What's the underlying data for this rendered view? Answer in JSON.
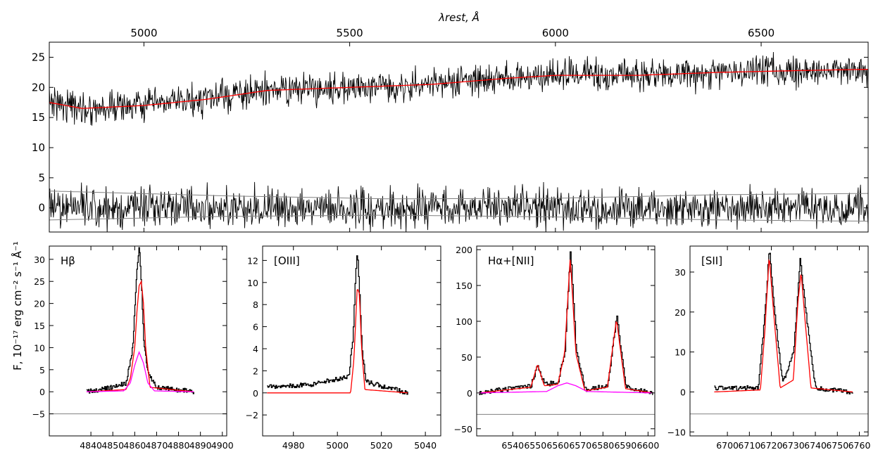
{
  "figure": {
    "top_axis_label": "λrest, Å",
    "y_axis_label": "F, 10⁻¹⁷ erg cm⁻² s⁻¹ Å⁻¹"
  },
  "chart_data": [
    {
      "id": "full",
      "type": "line",
      "xlabel": "λrest, Å",
      "ylabel": "F, 10⁻¹⁷ erg cm⁻² s⁻¹ Å⁻¹",
      "xlim": [
        4770,
        6760
      ],
      "ylim": [
        -4,
        27.5
      ],
      "x_ticks": [
        5000,
        5500,
        6000,
        6500
      ],
      "y_ticks": [
        0,
        5,
        10,
        15,
        20,
        25
      ],
      "series": [
        {
          "role": "observed spectrum",
          "color": "#000000",
          "x": [
            4770,
            4850,
            5000,
            5150,
            5300,
            5500,
            5700,
            5880,
            6000,
            6200,
            6400,
            6600,
            6760
          ],
          "values": [
            18,
            16.5,
            17,
            18,
            19.5,
            20,
            20.5,
            21.5,
            22,
            22,
            22.5,
            22.8,
            23
          ]
        },
        {
          "role": "model fit",
          "color": "#ff0000",
          "x": [
            4770,
            4850,
            5000,
            5150,
            5300,
            5500,
            5700,
            5880,
            6000,
            6200,
            6400,
            6600,
            6760
          ],
          "values": [
            17.5,
            16.5,
            17,
            18,
            19.5,
            20,
            20.5,
            21.5,
            22,
            22,
            22.5,
            22.8,
            23
          ]
        },
        {
          "role": "residuals",
          "color": "#000000",
          "x": [
            4770,
            6760
          ],
          "values": [
            0,
            0
          ]
        },
        {
          "role": "error upper",
          "color": "#808080",
          "x": [
            4770,
            5200,
            5600,
            6000,
            6400,
            6760
          ],
          "values": [
            2.8,
            2.0,
            1.5,
            1.6,
            2.2,
            2.4
          ]
        },
        {
          "role": "error lower",
          "color": "#808080",
          "x": [
            4770,
            5200,
            5600,
            6000,
            6400,
            6760
          ],
          "values": [
            -2.0,
            -1.4,
            -1.2,
            -1.5,
            -2.0,
            -2.2
          ]
        }
      ]
    },
    {
      "id": "hbeta",
      "type": "line",
      "annotation": "Hβ",
      "xlim": [
        4821,
        4902
      ],
      "ylim": [
        -10,
        33
      ],
      "x_ticks": [
        4840,
        4850,
        4860,
        4870,
        4880,
        4890,
        4900
      ],
      "y_ticks": [
        -5,
        0,
        5,
        10,
        15,
        20,
        25,
        30
      ],
      "series": [
        {
          "role": "observed",
          "color": "#000000",
          "x": [
            4838,
            4850,
            4856,
            4859,
            4861,
            4862,
            4863,
            4864,
            4866,
            4870,
            4887
          ],
          "values": [
            0,
            1,
            2,
            10,
            28,
            33,
            24,
            12,
            4,
            1,
            0
          ]
        },
        {
          "role": "total fit",
          "color": "#ff0000",
          "x": [
            4838,
            4856,
            4858,
            4860,
            4861,
            4862,
            4863,
            4864,
            4865,
            4867,
            4887
          ],
          "values": [
            0,
            0.5,
            3,
            10,
            18,
            24,
            25,
            20,
            10,
            1,
            0
          ]
        },
        {
          "role": "broad component",
          "color": "#ff00ff",
          "x": [
            4838,
            4855,
            4858,
            4860,
            4862,
            4864,
            4866,
            4869,
            4887
          ],
          "values": [
            0,
            0.2,
            2,
            6,
            9,
            6.5,
            2,
            0.2,
            0
          ]
        },
        {
          "role": "sky level",
          "color": "#808080",
          "x": [
            4821,
            4902
          ],
          "values": [
            -5,
            -5
          ]
        }
      ]
    },
    {
      "id": "oiii",
      "type": "line",
      "annotation": "[OIII]",
      "xlim": [
        4966,
        5047
      ],
      "ylim": [
        -3.9,
        13.3
      ],
      "x_ticks": [
        4980,
        5000,
        5020,
        5040
      ],
      "y_ticks": [
        -2,
        0,
        2,
        4,
        6,
        8,
        10,
        12
      ],
      "series": [
        {
          "role": "observed",
          "color": "#000000",
          "x": [
            4968,
            4990,
            5005,
            5007,
            5008,
            5009,
            5010,
            5011,
            5013,
            5032
          ],
          "values": [
            0.5,
            0.8,
            1.5,
            5,
            10,
            13,
            9,
            4,
            1,
            0
          ]
        },
        {
          "role": "total fit",
          "color": "#ff0000",
          "x": [
            4968,
            5006,
            5007.5,
            5009,
            5010,
            5011,
            5012.5,
            5032
          ],
          "values": [
            0,
            0,
            3,
            9.5,
            9.0,
            4,
            0.3,
            0
          ]
        }
      ]
    },
    {
      "id": "halpha",
      "type": "line",
      "annotation": "Hα+[NII]",
      "xlim": [
        6524,
        6603
      ],
      "ylim": [
        -60,
        205
      ],
      "x_ticks": [
        6540,
        6550,
        6560,
        6570,
        6580,
        6590,
        6600
      ],
      "y_ticks": [
        -50,
        0,
        50,
        100,
        150,
        200
      ],
      "series": [
        {
          "role": "observed",
          "color": "#000000",
          "x": [
            6525,
            6548,
            6551,
            6554,
            6560,
            6563,
            6565.5,
            6568,
            6572,
            6582,
            6586,
            6590,
            6602
          ],
          "values": [
            0,
            10,
            38,
            12,
            15,
            60,
            203,
            60,
            5,
            10,
            107,
            8,
            0
          ]
        },
        {
          "role": "total fit",
          "color": "#ff0000",
          "x": [
            6525,
            6548,
            6551,
            6554,
            6560,
            6563,
            6565.5,
            6568,
            6572,
            6582,
            6586,
            6590,
            6602
          ],
          "values": [
            0,
            8,
            40,
            10,
            12,
            55,
            190,
            55,
            3,
            8,
            103,
            6,
            0
          ]
        },
        {
          "role": "broad component",
          "color": "#ff00ff",
          "x": [
            6525,
            6555,
            6560,
            6564,
            6568,
            6573,
            6602
          ],
          "values": [
            0,
            2,
            10,
            14,
            10,
            2,
            0
          ]
        },
        {
          "role": "sky level",
          "color": "#808080",
          "x": [
            6524,
            6603
          ],
          "values": [
            -30,
            -30
          ]
        }
      ]
    },
    {
      "id": "sii",
      "type": "line",
      "annotation": "[SII]",
      "xlim": [
        6683,
        6764
      ],
      "ylim": [
        -11,
        36.5
      ],
      "x_ticks": [
        6700,
        6710,
        6720,
        6730,
        6740,
        6750,
        6760
      ],
      "y_ticks": [
        -10,
        0,
        10,
        20,
        30
      ],
      "series": [
        {
          "role": "observed",
          "color": "#000000",
          "x": [
            6694,
            6714,
            6717,
            6719,
            6721,
            6725,
            6730,
            6733,
            6736,
            6740,
            6757
          ],
          "values": [
            1,
            1,
            20,
            36,
            22,
            2,
            10,
            33,
            18,
            1,
            0
          ]
        },
        {
          "role": "total fit",
          "color": "#ff0000",
          "x": [
            6694,
            6715,
            6717,
            6719,
            6721,
            6724,
            6730,
            6732,
            6733.5,
            6735,
            6738,
            6757
          ],
          "values": [
            0,
            0.5,
            15,
            34,
            20,
            1,
            3,
            22,
            30,
            20,
            1,
            0
          ]
        },
        {
          "role": "sky level",
          "color": "#808080",
          "x": [
            6683,
            6764
          ],
          "values": [
            -5.5,
            -5.5
          ]
        }
      ]
    }
  ]
}
